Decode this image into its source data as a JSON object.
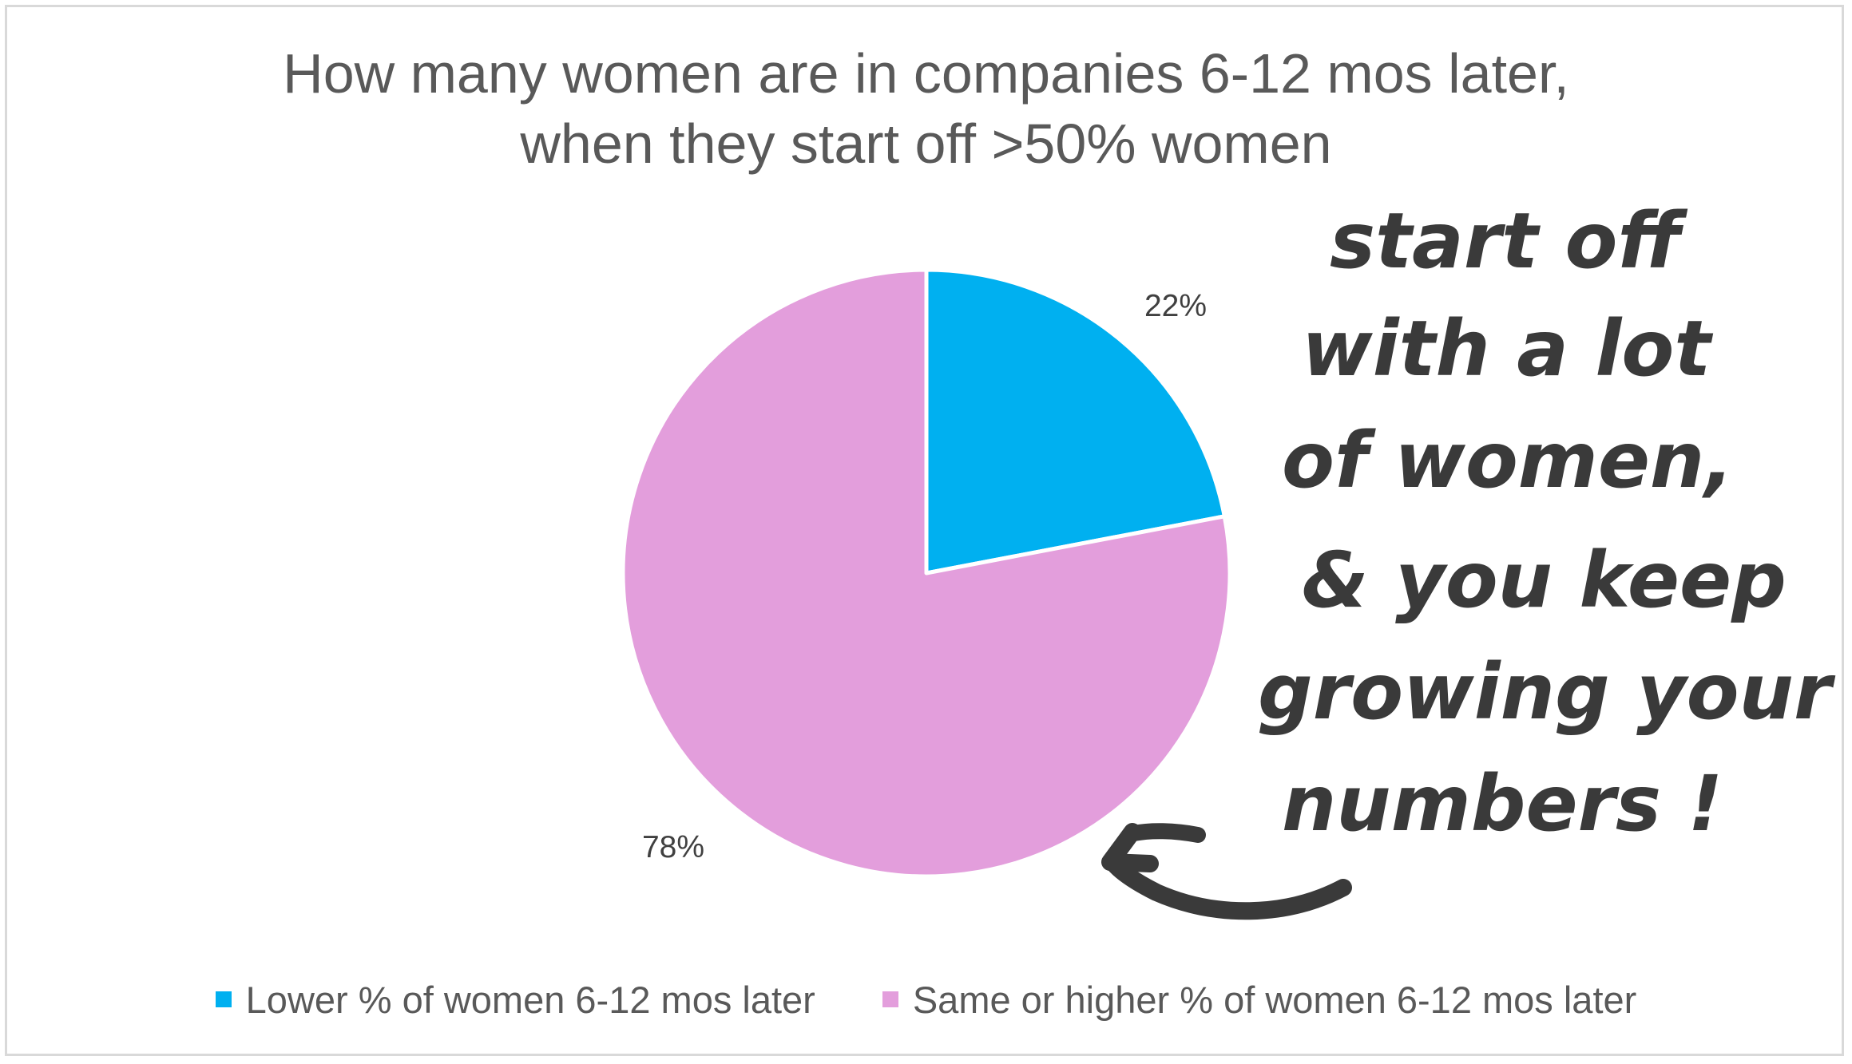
{
  "chart_data": {
    "type": "pie",
    "title_lines": [
      "How many women are in companies 6-12 mos later,",
      "when they start off >50% women"
    ],
    "categories": [
      "Lower % of women 6-12 mos later",
      "Same or higher % of women 6-12 mos later"
    ],
    "values": [
      22,
      78
    ],
    "data_labels": [
      "22%",
      "78%"
    ],
    "colors": [
      "#00b0f0",
      "#e39edc"
    ],
    "legend_position": "bottom",
    "start_angle": "12 o'clock, clockwise"
  },
  "annotation": {
    "lines": [
      "start off",
      "with a lot",
      "of women,",
      "& you keep",
      "growing your",
      "numbers !"
    ],
    "color": "#3a3a3a"
  }
}
